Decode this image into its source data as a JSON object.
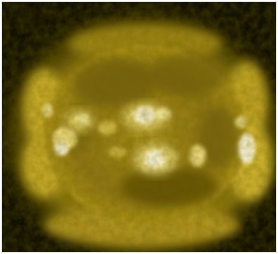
{
  "image": {
    "subject": "sun-corona-extreme-ultraviolet",
    "colors": {
      "background": "#0b0a02",
      "halo_outer": "#3a3204",
      "halo_mid": "#8a7410",
      "disk": "#9c8414",
      "disk_dark": "#6e5c0a",
      "active_region": "#f6ea9a",
      "hot_core": "#fffbe0"
    }
  }
}
